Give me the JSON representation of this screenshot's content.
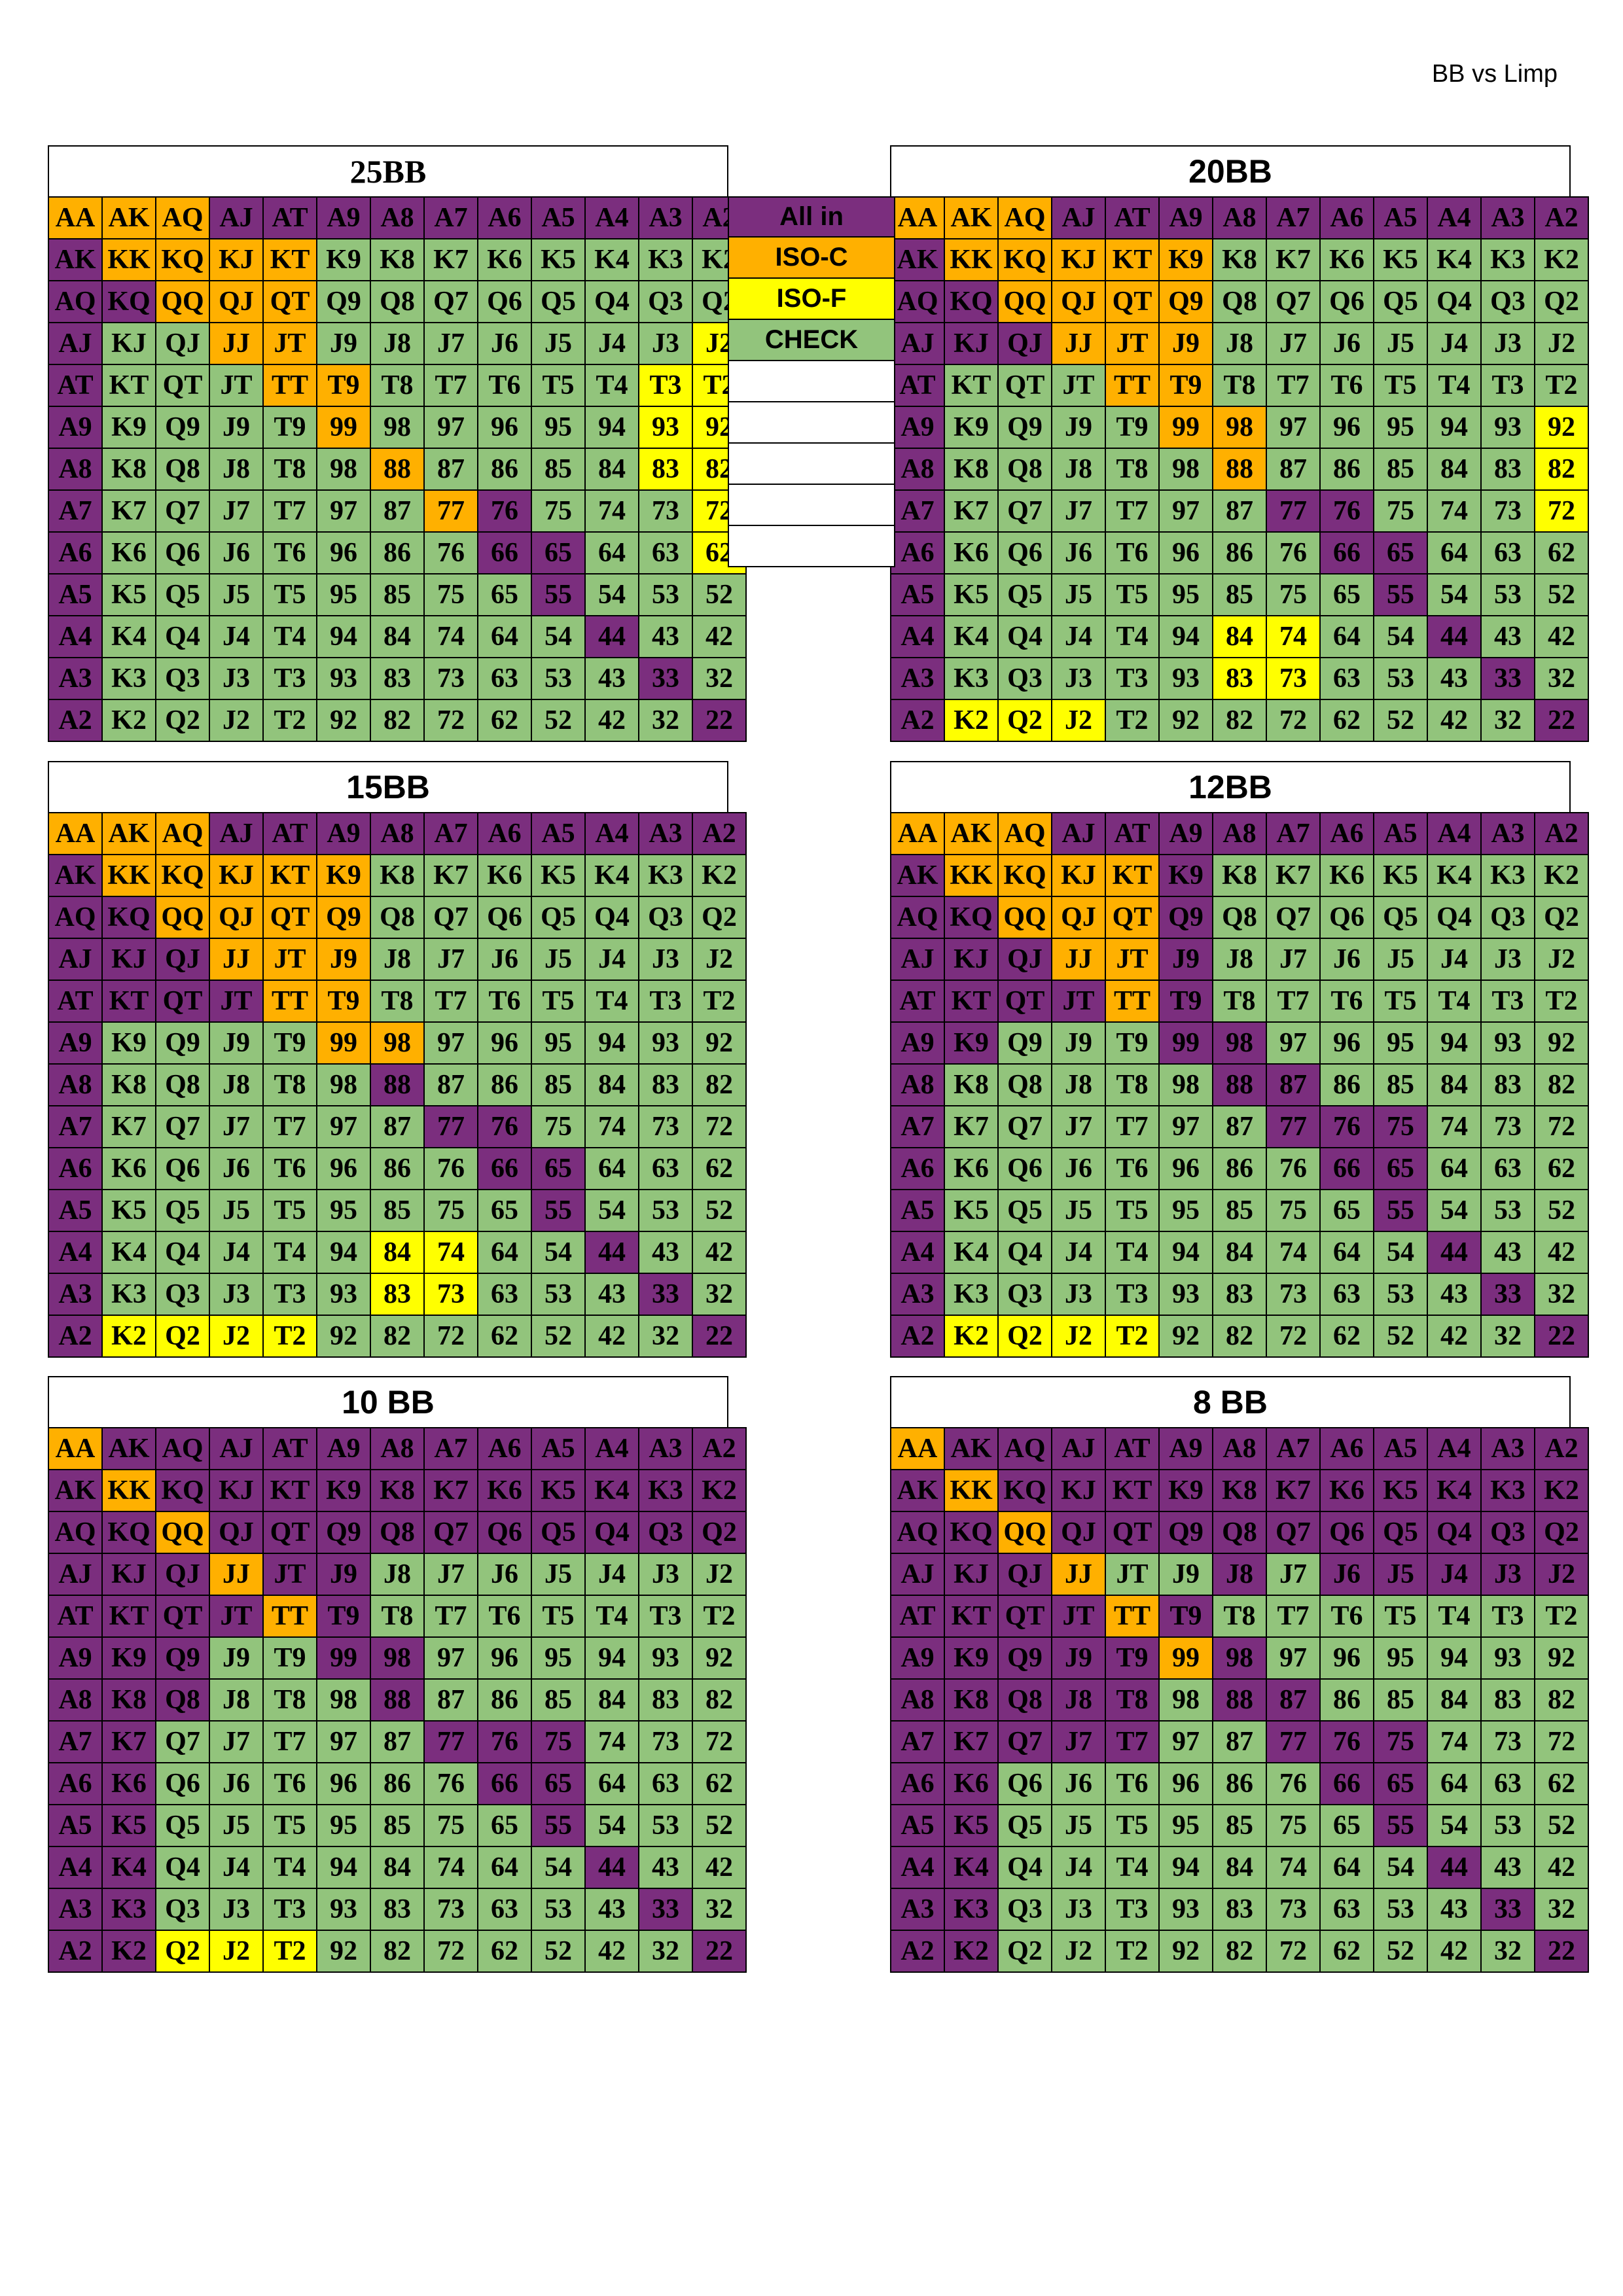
{
  "header_note": "BB vs Limp",
  "colors": {
    "P": "#7b2e7e",
    "O": "#ffb000",
    "Y": "#ffff00",
    "G": "#92c47c"
  },
  "legend": [
    {
      "label": "All in",
      "color": "#7b2e7e"
    },
    {
      "label": "ISO-C",
      "color": "#ffb000"
    },
    {
      "label": "ISO-F",
      "color": "#ffff00"
    },
    {
      "label": "CHECK",
      "color": "#92c47c"
    },
    {
      "label": "",
      "color": "#ffffff"
    },
    {
      "label": "",
      "color": "#ffffff"
    },
    {
      "label": "",
      "color": "#ffffff"
    },
    {
      "label": "",
      "color": "#ffffff"
    },
    {
      "label": "",
      "color": "#ffffff"
    }
  ],
  "hands": [
    [
      "AA",
      "AK",
      "AQ",
      "AJ",
      "AT",
      "A9",
      "A8",
      "A7",
      "A6",
      "A5",
      "A4",
      "A3",
      "A2"
    ],
    [
      "AK",
      "KK",
      "KQ",
      "KJ",
      "KT",
      "K9",
      "K8",
      "K7",
      "K6",
      "K5",
      "K4",
      "K3",
      "K2"
    ],
    [
      "AQ",
      "KQ",
      "QQ",
      "QJ",
      "QT",
      "Q9",
      "Q8",
      "Q7",
      "Q6",
      "Q5",
      "Q4",
      "Q3",
      "Q2"
    ],
    [
      "AJ",
      "KJ",
      "QJ",
      "JJ",
      "JT",
      "J9",
      "J8",
      "J7",
      "J6",
      "J5",
      "J4",
      "J3",
      "J2"
    ],
    [
      "AT",
      "KT",
      "QT",
      "JT",
      "TT",
      "T9",
      "T8",
      "T7",
      "T6",
      "T5",
      "T4",
      "T3",
      "T2"
    ],
    [
      "A9",
      "K9",
      "Q9",
      "J9",
      "T9",
      "99",
      "98",
      "97",
      "96",
      "95",
      "94",
      "93",
      "92"
    ],
    [
      "A8",
      "K8",
      "Q8",
      "J8",
      "T8",
      "98",
      "88",
      "87",
      "86",
      "85",
      "84",
      "83",
      "82"
    ],
    [
      "A7",
      "K7",
      "Q7",
      "J7",
      "T7",
      "97",
      "87",
      "77",
      "76",
      "75",
      "74",
      "73",
      "72"
    ],
    [
      "A6",
      "K6",
      "Q6",
      "J6",
      "T6",
      "96",
      "86",
      "76",
      "66",
      "65",
      "64",
      "63",
      "62"
    ],
    [
      "A5",
      "K5",
      "Q5",
      "J5",
      "T5",
      "95",
      "85",
      "75",
      "65",
      "55",
      "54",
      "53",
      "52"
    ],
    [
      "A4",
      "K4",
      "Q4",
      "J4",
      "T4",
      "94",
      "84",
      "74",
      "64",
      "54",
      "44",
      "43",
      "42"
    ],
    [
      "A3",
      "K3",
      "Q3",
      "J3",
      "T3",
      "93",
      "83",
      "73",
      "63",
      "53",
      "43",
      "33",
      "32"
    ],
    [
      "A2",
      "K2",
      "Q2",
      "J2",
      "T2",
      "92",
      "82",
      "72",
      "62",
      "52",
      "42",
      "32",
      "22"
    ]
  ],
  "charts": [
    {
      "title": "25BB",
      "actions": [
        "OOOPPPPPPPPPP",
        "POOOOGGGGGGGG",
        "PPOOOGGGGGGGG",
        "PGGOOGGGGGGGY",
        "PGGGOOGGGGGYY",
        "PGGGGOGGGGGYY",
        "PGGGGGOGGGGYY",
        "PGGGGGGOPGGGY",
        "PGGGGGGGPPGGY",
        "PGGGGGGGGPGGG",
        "PGGGGGGGGGPGG",
        "PGGGGGGGGGGPG",
        "PGGGGGGGGGGGP"
      ]
    },
    {
      "title": "20BB",
      "actions": [
        "OOOPPPPPPPPPP",
        "POOOOOGGGGGGG",
        "PPOOOOGGGGGGG",
        "PPPOOOGGGGGGG",
        "PGGGOOGGGGGGG",
        "PGGGGOOGGGGGY",
        "PGGGGGOGGGGGY",
        "PGGGGGGPPGGGY",
        "PGGGGGGGPPGGG",
        "PGGGGGGGGPGGG",
        "PGGGGGYYGGPGG",
        "PGGGGGYYGGGPG",
        "PYYYGGGGGGGGP"
      ]
    },
    {
      "title": "15BB",
      "actions": [
        "OOOPPPPPPPPPP",
        "POOOOOGGGGGGG",
        "PPOOOOGGGGGGG",
        "PPPOOOGGGGGGG",
        "PPPPOOGGGGGGG",
        "PGGGGOOGGGGGG",
        "PGGGGGPGGGGGG",
        "PGGGGGGPPGGGG",
        "PGGGGGGGPPGGG",
        "PGGGGGGGGPGGG",
        "PGGGGGYYGGPGG",
        "PGGGGGYYGGGPG",
        "PYYYYGGGGGGGP"
      ]
    },
    {
      "title": "12BB",
      "actions": [
        "OOOPPPPPPPPPP",
        "POOOOPGGGGGGG",
        "PPOOOPGGGGGGG",
        "PPPOOPGGGGGGG",
        "PPPPOPGGGGGGG",
        "PPGGGPPGGGGGG",
        "PGGGGGPPGGGGG",
        "PGGGGGGPPPGGG",
        "PGGGGGGGPPGGG",
        "PGGGGGGGGPGGG",
        "PGGGGGGGGGPGG",
        "PGGGGGGGGGGPG",
        "PYYYYGGGGGGGP"
      ]
    },
    {
      "title": "10 BB",
      "actions": [
        "OPPPPPPPPPPPP",
        "POPPPPPPPPPPP",
        "PPOPPPPPPPPPP",
        "PPPOPPGGGGGGG",
        "PPPPOPGGGGGGG",
        "PPPGGPPGGGGGG",
        "PPPGGGPGGGGGG",
        "PPGGGGGPPPGGG",
        "PPGGGGGGPPGGG",
        "PPGGGGGGGPGGG",
        "PPGGGGGGGGPGG",
        "PPGGGGGGGGGPG",
        "PPYYYGGGGGGGP"
      ]
    },
    {
      "title": "8 BB",
      "actions": [
        "OPPPPPPPPPPPP",
        "POPPPPPPPPPPP",
        "PPOPPPPPPPPPP",
        "PPPOGGPGPPPPP",
        "PPPPOPGGGGGGG",
        "PPPPPOPGGGGGG",
        "PPPPPGPPGGGGG",
        "PPPPPGGPPPGGG",
        "PPGGGGGGPPGGG",
        "PPGGGGGGGPGGG",
        "PPGGGGGGGGPGG",
        "PPGGGGGGGGGPG",
        "PPGGGGGGGGGGP"
      ]
    }
  ]
}
